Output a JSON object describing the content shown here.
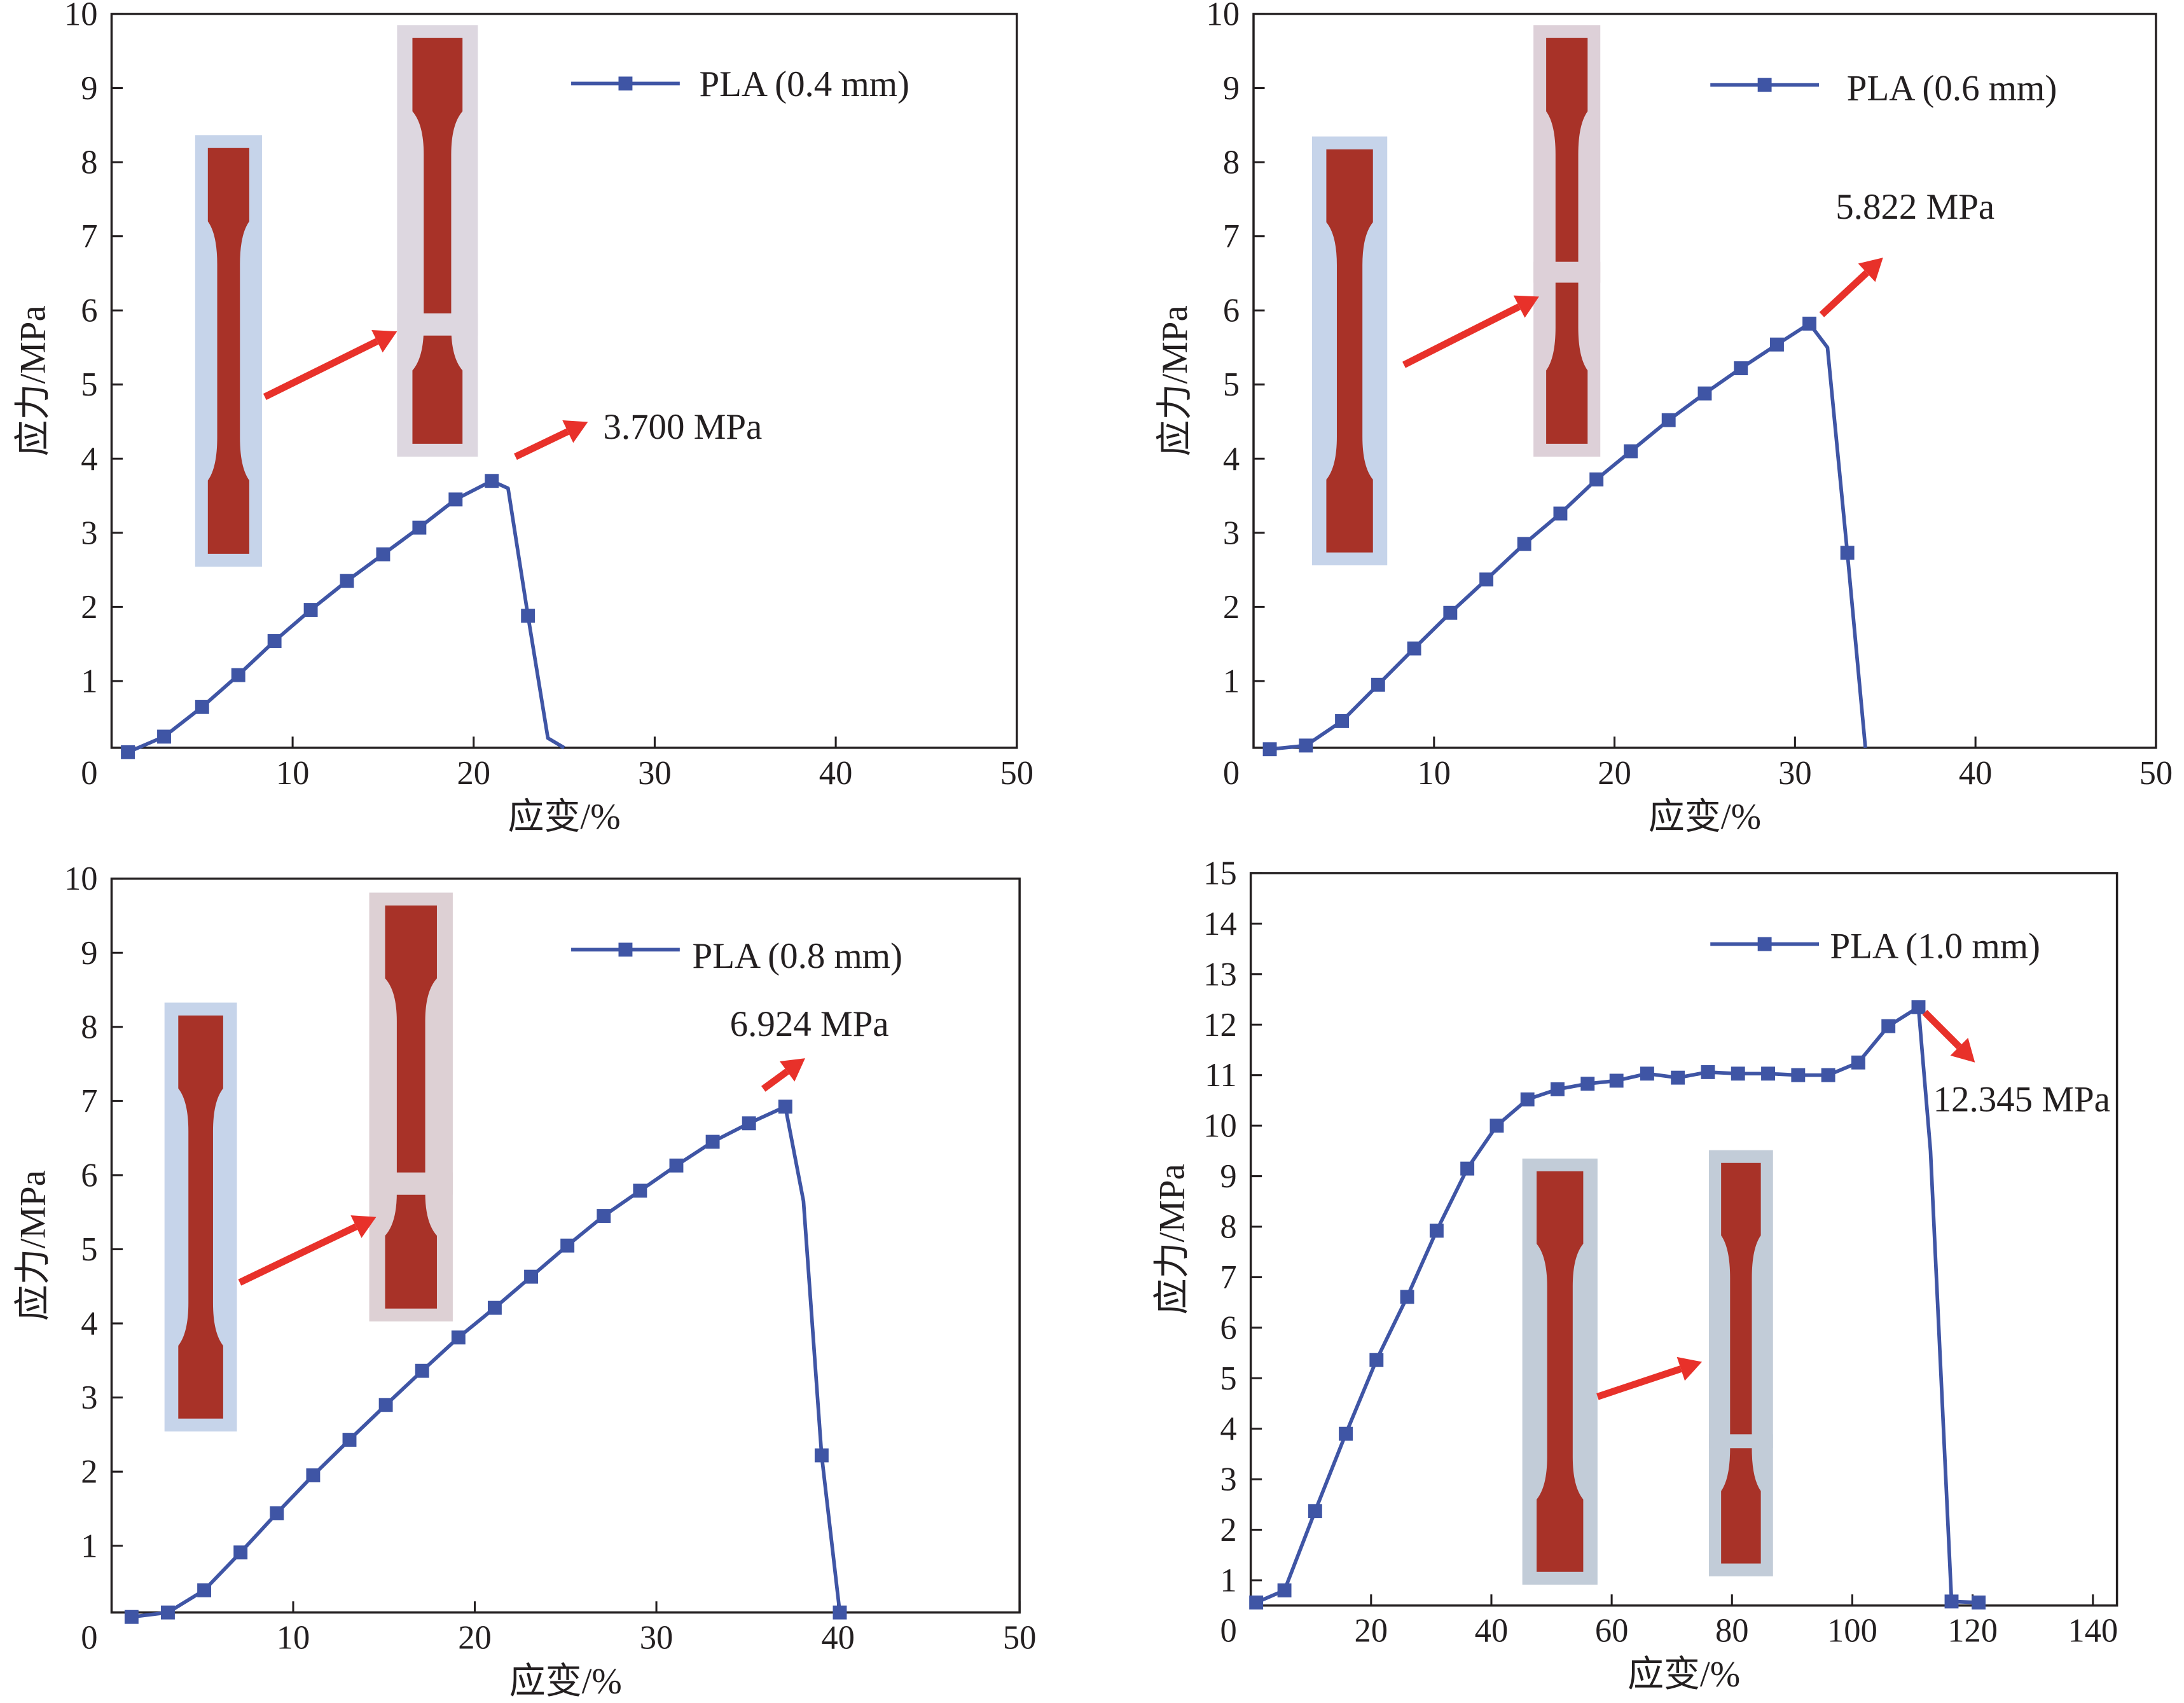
{
  "colors": {
    "series": "#3f55a5",
    "arrow": "#e8312a",
    "specimen": "#a83228",
    "axis": "#231f20"
  },
  "chart_data": [
    {
      "type": "line",
      "xlabel": "应变/%",
      "ylabel": "应力/MPa",
      "xlim": [
        0,
        50
      ],
      "ylim": [
        0.1,
        10
      ],
      "xticks": [
        0,
        10,
        20,
        30,
        40,
        50
      ],
      "yticks": [
        1,
        2,
        3,
        4,
        5,
        6,
        7,
        8,
        9,
        10
      ],
      "grid": false,
      "legend": "top-right",
      "series": [
        {
          "name": "PLA (0.4 mm)",
          "marker": "square",
          "x": [
            0.9,
            2.9,
            5.0,
            7.0,
            9.0,
            11.0,
            13.0,
            15.0,
            17.0,
            19.0,
            21.0,
            21.9,
            23.0,
            24.1,
            25.0
          ],
          "y": [
            0.04,
            0.25,
            0.65,
            1.08,
            1.54,
            1.96,
            2.35,
            2.71,
            3.07,
            3.45,
            3.7,
            3.6,
            1.88,
            0.23,
            0.1
          ],
          "marked": [
            true,
            true,
            true,
            true,
            true,
            true,
            true,
            true,
            true,
            true,
            true,
            false,
            true,
            false,
            false
          ]
        }
      ],
      "annotation": "3.700 MPa"
    },
    {
      "type": "line",
      "xlabel": "应变/%",
      "ylabel": "应力/MPa",
      "xlim": [
        0,
        50
      ],
      "ylim": [
        0.1,
        10
      ],
      "xticks": [
        0,
        10,
        20,
        30,
        40,
        50
      ],
      "yticks": [
        1,
        2,
        3,
        4,
        5,
        6,
        7,
        8,
        9,
        10
      ],
      "grid": false,
      "legend": "top-right",
      "series": [
        {
          "name": "PLA (0.6 mm)",
          "marker": "square",
          "x": [
            0.9,
            2.9,
            4.9,
            6.9,
            8.9,
            10.9,
            12.9,
            15.0,
            17.0,
            19.0,
            20.9,
            23.0,
            25.0,
            27.0,
            29.0,
            30.8,
            31.8,
            32.9,
            33.9
          ],
          "y": [
            0.08,
            0.13,
            0.46,
            0.95,
            1.44,
            1.92,
            2.37,
            2.85,
            3.26,
            3.72,
            4.1,
            4.52,
            4.88,
            5.22,
            5.54,
            5.822,
            5.5,
            2.73,
            0.1
          ],
          "marked": [
            true,
            true,
            true,
            true,
            true,
            true,
            true,
            true,
            true,
            true,
            true,
            true,
            true,
            true,
            true,
            true,
            false,
            true,
            false
          ]
        }
      ],
      "annotation": "5.822 MPa"
    },
    {
      "type": "line",
      "xlabel": "应变/%",
      "ylabel": "应力/MPa",
      "xlim": [
        0,
        50
      ],
      "ylim": [
        0.1,
        10
      ],
      "xticks": [
        0,
        10,
        20,
        30,
        40,
        50
      ],
      "yticks": [
        1,
        2,
        3,
        4,
        5,
        6,
        7,
        8,
        9,
        10
      ],
      "grid": false,
      "legend": "top-right",
      "series": [
        {
          "name": "PLA (0.8 mm)",
          "marker": "square",
          "x": [
            1.1,
            3.1,
            5.1,
            7.1,
            9.1,
            11.1,
            13.1,
            15.1,
            17.1,
            19.1,
            21.1,
            23.1,
            25.1,
            27.1,
            29.1,
            31.1,
            33.1,
            35.1,
            37.1,
            38.1,
            39.1,
            40.1
          ],
          "y": [
            0.04,
            0.1,
            0.4,
            0.91,
            1.44,
            1.95,
            2.43,
            2.9,
            3.36,
            3.81,
            4.21,
            4.63,
            5.05,
            5.45,
            5.79,
            6.13,
            6.45,
            6.7,
            6.924,
            5.65,
            2.22,
            0.1
          ],
          "marked": [
            true,
            true,
            true,
            true,
            true,
            true,
            true,
            true,
            true,
            true,
            true,
            true,
            true,
            true,
            true,
            true,
            true,
            true,
            true,
            false,
            true,
            true
          ]
        }
      ],
      "annotation": "6.924 MPa"
    },
    {
      "type": "line",
      "xlabel": "应变/%",
      "ylabel": "应力/MPa",
      "xlim": [
        0,
        144
      ],
      "ylim": [
        0.5,
        15
      ],
      "xticks": [
        0,
        20,
        40,
        60,
        80,
        100,
        120,
        140
      ],
      "yticks": [
        1,
        2,
        3,
        4,
        5,
        6,
        7,
        8,
        9,
        10,
        11,
        12,
        13,
        14,
        15
      ],
      "grid": false,
      "legend": "top-right",
      "series": [
        {
          "name": "PLA (1.0 mm)",
          "marker": "square",
          "x": [
            0.9,
            5.6,
            10.7,
            15.8,
            20.9,
            26.0,
            30.9,
            36.0,
            40.9,
            46.0,
            51.0,
            56.0,
            60.8,
            65.9,
            71.0,
            76.0,
            81.0,
            86.0,
            91.0,
            96.0,
            101.0,
            106.0,
            111.0,
            113.0,
            116.5,
            121.0
          ],
          "y": [
            0.56,
            0.8,
            2.37,
            3.9,
            5.36,
            6.61,
            7.92,
            9.15,
            10.0,
            10.52,
            10.72,
            10.83,
            10.89,
            11.03,
            10.95,
            11.06,
            11.03,
            11.03,
            11.0,
            11.0,
            11.25,
            11.97,
            12.345,
            9.5,
            0.58,
            0.56
          ],
          "marked": [
            true,
            true,
            true,
            true,
            true,
            true,
            true,
            true,
            true,
            true,
            true,
            true,
            true,
            true,
            true,
            true,
            true,
            true,
            true,
            true,
            true,
            true,
            true,
            false,
            true,
            true
          ]
        }
      ],
      "annotation": "12.345 MPa"
    }
  ]
}
